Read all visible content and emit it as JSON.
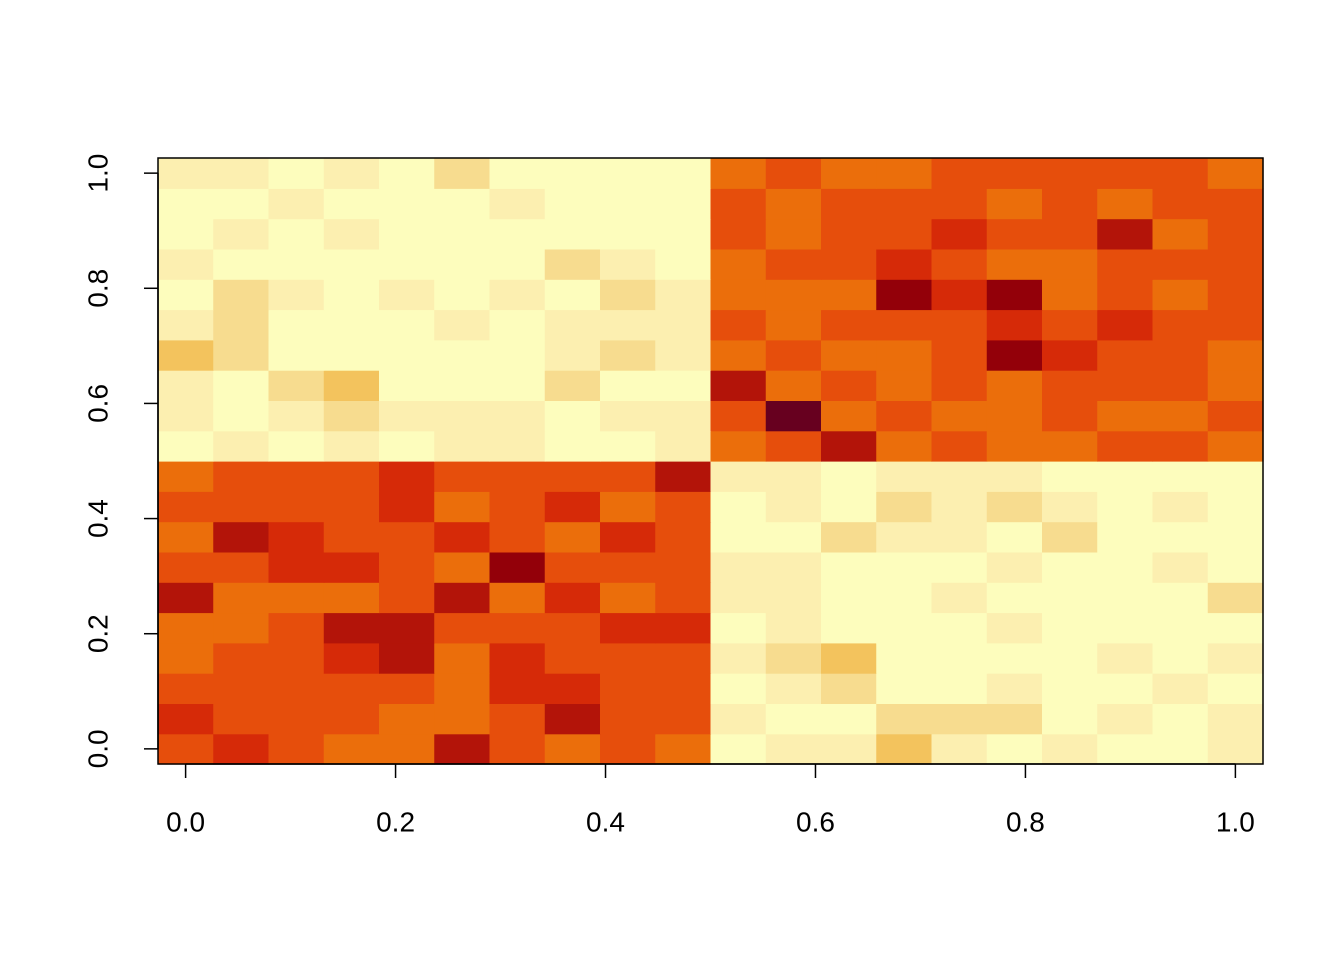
{
  "chart_data": {
    "type": "heatmap",
    "colors": [
      "#67001F",
      "#930009",
      "#b31409",
      "#d62a08",
      "#e64e0c",
      "#eb6e0b",
      "#f3c35d",
      "#f7dc8f",
      "#fcefb0",
      "#fdfdbd"
    ],
    "xlim": [
      -0.0263,
      1.0263
    ],
    "ylim": [
      -0.0263,
      1.0263
    ],
    "xticks": [
      {
        "value": 0,
        "label": "0.0"
      },
      0.2,
      0.4,
      0.6,
      0.8,
      {
        "value": 1,
        "label": "1.0"
      }
    ],
    "yticks": [
      {
        "value": 0,
        "label": "0.0"
      },
      0.2,
      0.4,
      0.6,
      0.8,
      {
        "value": 1,
        "label": "1.0"
      }
    ],
    "z": [
      [
        5,
        4,
        5,
        6,
        6,
        3,
        5,
        6,
        5,
        6,
        10,
        9,
        9,
        7,
        9,
        10,
        9,
        10,
        10,
        9
      ],
      [
        4,
        5,
        5,
        5,
        6,
        6,
        5,
        3,
        5,
        5,
        9,
        10,
        10,
        8,
        8,
        8,
        10,
        9,
        10,
        9
      ],
      [
        5,
        5,
        5,
        5,
        5,
        6,
        4,
        4,
        5,
        5,
        10,
        9,
        8,
        10,
        10,
        9,
        10,
        10,
        9,
        10
      ],
      [
        6,
        5,
        5,
        4,
        3,
        6,
        4,
        5,
        5,
        5,
        9,
        8,
        7,
        10,
        10,
        10,
        10,
        9,
        10,
        9
      ],
      [
        6,
        6,
        5,
        3,
        3,
        5,
        5,
        5,
        4,
        4,
        10,
        9,
        10,
        10,
        10,
        9,
        10,
        10,
        10,
        10
      ],
      [
        3,
        6,
        6,
        6,
        5,
        3,
        6,
        4,
        6,
        5,
        9,
        9,
        10,
        10,
        9,
        10,
        10,
        10,
        10,
        8
      ],
      [
        5,
        5,
        4,
        4,
        5,
        6,
        2,
        5,
        5,
        5,
        9,
        9,
        10,
        10,
        10,
        9,
        10,
        10,
        9,
        10
      ],
      [
        6,
        3,
        4,
        5,
        5,
        4,
        5,
        6,
        4,
        5,
        10,
        10,
        8,
        9,
        9,
        10,
        8,
        10,
        10,
        10
      ],
      [
        5,
        5,
        5,
        5,
        4,
        6,
        5,
        4,
        6,
        5,
        10,
        9,
        10,
        8,
        9,
        8,
        9,
        10,
        9,
        10
      ],
      [
        6,
        5,
        5,
        5,
        4,
        5,
        5,
        5,
        5,
        3,
        9,
        9,
        10,
        9,
        9,
        9,
        10,
        10,
        10,
        10
      ],
      [
        10,
        9,
        10,
        9,
        10,
        9,
        9,
        10,
        10,
        9,
        6,
        5,
        3,
        6,
        5,
        6,
        6,
        5,
        5,
        6
      ],
      [
        9,
        10,
        9,
        8,
        9,
        9,
        9,
        10,
        9,
        9,
        5,
        1,
        6,
        5,
        6,
        6,
        5,
        6,
        6,
        5
      ],
      [
        9,
        10,
        8,
        7,
        10,
        10,
        10,
        8,
        10,
        10,
        3,
        6,
        5,
        6,
        5,
        6,
        5,
        5,
        5,
        6
      ],
      [
        7,
        8,
        10,
        10,
        10,
        10,
        10,
        9,
        8,
        9,
        6,
        5,
        6,
        6,
        5,
        2,
        4,
        5,
        5,
        6
      ],
      [
        9,
        8,
        10,
        10,
        10,
        9,
        10,
        9,
        9,
        9,
        5,
        6,
        5,
        5,
        5,
        4,
        5,
        4,
        5,
        5
      ],
      [
        10,
        8,
        9,
        10,
        9,
        10,
        9,
        10,
        8,
        9,
        6,
        6,
        6,
        2,
        4,
        2,
        6,
        5,
        6,
        5
      ],
      [
        9,
        10,
        10,
        10,
        10,
        10,
        10,
        8,
        9,
        10,
        6,
        5,
        5,
        4,
        5,
        6,
        6,
        5,
        5,
        5
      ],
      [
        10,
        9,
        10,
        9,
        10,
        10,
        10,
        10,
        10,
        10,
        5,
        6,
        5,
        5,
        4,
        5,
        5,
        3,
        6,
        5
      ],
      [
        10,
        10,
        9,
        10,
        10,
        10,
        9,
        10,
        10,
        10,
        5,
        6,
        5,
        5,
        5,
        6,
        5,
        6,
        5,
        5
      ],
      [
        9,
        9,
        10,
        9,
        10,
        8,
        10,
        10,
        10,
        10,
        6,
        5,
        6,
        6,
        5,
        5,
        5,
        5,
        5,
        6
      ]
    ]
  }
}
